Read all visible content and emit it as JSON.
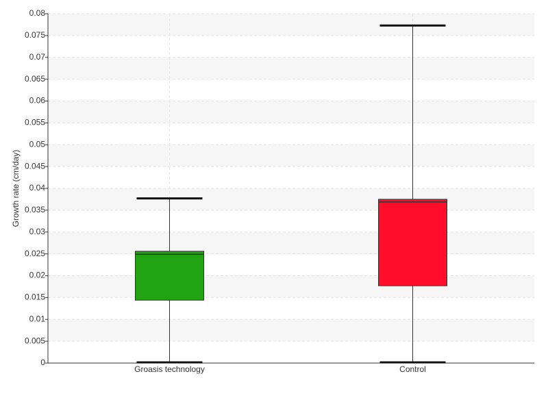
{
  "chart_data": {
    "type": "box",
    "y_label": "Growth rate (cm/day)",
    "categories": [
      "Groasis technology",
      "Control"
    ],
    "boxes": [
      {
        "min": 0,
        "q1": 0.0144,
        "median": 0.0249,
        "q3": 0.0256,
        "max": 0.0377,
        "color": "#22a412"
      },
      {
        "min": 0,
        "q1": 0.0177,
        "median": 0.0369,
        "q3": 0.0375,
        "max": 0.0773,
        "color": "#ff0d2b"
      }
    ],
    "ylim": [
      0,
      0.08
    ],
    "yticks": [
      0,
      0.005,
      0.01,
      0.015,
      0.02,
      0.025,
      0.03,
      0.035,
      0.04,
      0.045,
      0.05,
      0.055,
      0.06,
      0.065,
      0.07,
      0.075,
      0.08
    ],
    "grid": true
  }
}
